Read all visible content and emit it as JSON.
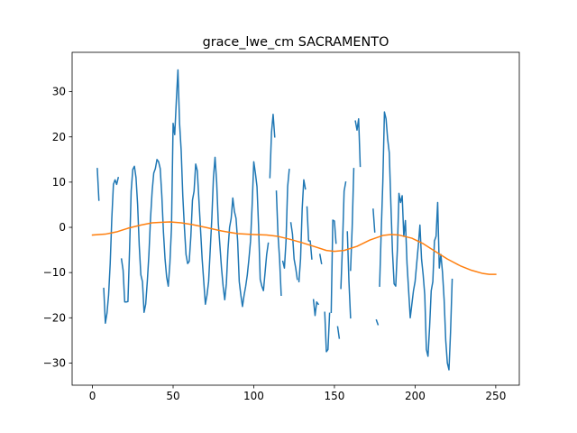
{
  "chart_data": {
    "type": "line",
    "title": "grace_lwe_cm SACRAMENTO",
    "xlabel": "",
    "ylabel": "",
    "xlim": [
      -12.6,
      264.6
    ],
    "ylim": [
      -34.9,
      38.7
    ],
    "xticks": [
      0,
      50,
      100,
      150,
      200,
      250
    ],
    "yticks": [
      -30,
      -20,
      -10,
      0,
      10,
      20,
      30
    ],
    "grid": false,
    "legend": "none",
    "series": [
      {
        "color": "#1f77b4",
        "segments": [
          [
            [
              3,
              13
            ],
            [
              4,
              6
            ]
          ],
          [
            [
              7,
              -13.5
            ],
            [
              8,
              -21.2
            ],
            [
              9,
              -19
            ],
            [
              10,
              -15
            ],
            [
              11,
              -8
            ],
            [
              12,
              2
            ],
            [
              13,
              9.5
            ],
            [
              14,
              10.5
            ],
            [
              15,
              9.5
            ],
            [
              16,
              11
            ]
          ],
          [
            [
              18,
              -7
            ],
            [
              19,
              -9.5
            ],
            [
              20,
              -16.5
            ],
            [
              21,
              -16.5
            ],
            [
              22,
              -16.4
            ],
            [
              23,
              -5
            ],
            [
              24,
              8
            ],
            [
              25,
              12.8
            ],
            [
              26,
              13.5
            ],
            [
              27,
              11
            ],
            [
              28,
              5
            ],
            [
              29,
              -4
            ],
            [
              30,
              -10.5
            ],
            [
              31,
              -12
            ],
            [
              32,
              -18.8
            ],
            [
              33,
              -17
            ],
            [
              34,
              -12
            ],
            [
              35,
              -6
            ],
            [
              36,
              2
            ],
            [
              37,
              8
            ],
            [
              38,
              12
            ],
            [
              39,
              13
            ],
            [
              40,
              15
            ],
            [
              41,
              14.5
            ],
            [
              42,
              13
            ],
            [
              43,
              7
            ],
            [
              44,
              -1
            ],
            [
              45,
              -7
            ],
            [
              46,
              -11
            ],
            [
              47,
              -13
            ],
            [
              48,
              -8
            ],
            [
              49,
              0
            ],
            [
              50,
              23
            ],
            [
              51,
              20.5
            ],
            [
              52,
              28
            ],
            [
              53,
              34.8
            ],
            [
              54,
              23
            ],
            [
              55,
              17
            ],
            [
              56,
              7
            ],
            [
              57,
              0
            ],
            [
              58,
              -6
            ],
            [
              59,
              -8
            ],
            [
              60,
              -7.5
            ],
            [
              61,
              -2
            ],
            [
              62,
              6
            ],
            [
              63,
              8
            ],
            [
              64,
              14
            ],
            [
              65,
              12.5
            ],
            [
              66,
              6
            ],
            [
              67,
              -0.5
            ],
            [
              68,
              -7
            ],
            [
              69,
              -12
            ],
            [
              70,
              -17
            ],
            [
              71,
              -15
            ],
            [
              72,
              -12
            ],
            [
              73,
              -5
            ],
            [
              74,
              2
            ],
            [
              75,
              11
            ],
            [
              76,
              15.5
            ],
            [
              77,
              10
            ],
            [
              78,
              1
            ],
            [
              79,
              -4
            ],
            [
              80,
              -9
            ],
            [
              81,
              -13
            ],
            [
              82,
              -16
            ],
            [
              83,
              -12.5
            ],
            [
              84,
              -5
            ],
            [
              85,
              0
            ],
            [
              86,
              2
            ],
            [
              87,
              6.5
            ],
            [
              88,
              3.5
            ],
            [
              89,
              2
            ],
            [
              90,
              -3
            ],
            [
              91,
              -12
            ],
            [
              92,
              -15
            ],
            [
              93,
              -17.5
            ],
            [
              94,
              -15
            ],
            [
              95,
              -13
            ],
            [
              96,
              -10.5
            ],
            [
              97,
              -7
            ],
            [
              98,
              -3
            ],
            [
              99,
              5
            ],
            [
              100,
              14.5
            ],
            [
              101,
              12
            ],
            [
              102,
              9
            ],
            [
              103,
              0
            ],
            [
              104,
              -11.5
            ],
            [
              105,
              -13
            ],
            [
              106,
              -14
            ],
            [
              107,
              -10
            ],
            [
              108,
              -6
            ],
            [
              109,
              -3.5
            ]
          ],
          [
            [
              110,
              11
            ],
            [
              111,
              21
            ],
            [
              112,
              25
            ],
            [
              113,
              20
            ]
          ],
          [
            [
              114,
              8
            ],
            [
              115,
              -1.5
            ],
            [
              116,
              -7
            ],
            [
              117,
              -15
            ]
          ],
          [
            [
              118,
              -7.5
            ],
            [
              119,
              -9
            ],
            [
              120,
              -3
            ],
            [
              121,
              9
            ],
            [
              122,
              12.8
            ]
          ],
          [
            [
              123,
              1
            ],
            [
              124,
              -1.5
            ],
            [
              125,
              -7
            ],
            [
              126,
              -9
            ],
            [
              127,
              -11.5
            ]
          ],
          [
            [
              128,
              -12
            ],
            [
              129,
              -7
            ],
            [
              130,
              4
            ],
            [
              131,
              10.5
            ],
            [
              132,
              8.5
            ]
          ],
          [
            [
              133,
              4.5
            ],
            [
              134,
              -3
            ],
            [
              135,
              -3
            ],
            [
              136,
              -7
            ]
          ],
          [
            [
              137,
              -16
            ],
            [
              138,
              -19.5
            ],
            [
              139,
              -16.5
            ],
            [
              140,
              -17
            ]
          ],
          [
            [
              141,
              -6
            ],
            [
              142,
              -8
            ]
          ],
          [
            [
              144,
              -18.8
            ],
            [
              145,
              -27.5
            ],
            [
              146,
              -27
            ],
            [
              147,
              -19
            ]
          ],
          [
            [
              148,
              -18.8
            ],
            [
              149,
              1.6
            ],
            [
              150,
              1.4
            ],
            [
              151,
              -3.5
            ]
          ],
          [
            [
              152,
              -22
            ],
            [
              153,
              -24.5
            ]
          ],
          [
            [
              154,
              -13.5
            ],
            [
              155,
              -4
            ],
            [
              156,
              8
            ],
            [
              157,
              10
            ]
          ],
          [
            [
              158,
              -1
            ],
            [
              159,
              -12
            ],
            [
              160,
              -20
            ]
          ],
          [
            [
              160,
              -9.5
            ],
            [
              161,
              0
            ],
            [
              162,
              13
            ]
          ],
          [
            [
              163,
              23.5
            ],
            [
              164,
              21.5
            ],
            [
              165,
              24
            ],
            [
              166,
              13.5
            ]
          ],
          [
            [
              174,
              4
            ],
            [
              175,
              -1
            ]
          ],
          [
            [
              176,
              -20.5
            ],
            [
              177,
              -21.5
            ]
          ],
          [
            [
              178,
              -13
            ],
            [
              179,
              -1
            ],
            [
              180,
              10
            ],
            [
              181,
              25.5
            ],
            [
              182,
              24
            ],
            [
              183,
              19.5
            ],
            [
              184,
              16.5
            ],
            [
              185,
              5
            ],
            [
              186,
              -5.5
            ],
            [
              187,
              -12.5
            ],
            [
              188,
              -13
            ],
            [
              189,
              -5
            ],
            [
              190,
              7.5
            ],
            [
              191,
              5.5
            ],
            [
              192,
              7
            ],
            [
              193,
              -2
            ],
            [
              194,
              1.5
            ],
            [
              195,
              -8
            ],
            [
              196,
              -14
            ],
            [
              197,
              -20
            ],
            [
              198,
              -17
            ],
            [
              199,
              -14
            ],
            [
              200,
              -12
            ],
            [
              201,
              -8
            ],
            [
              202,
              -4
            ],
            [
              203,
              0.5
            ],
            [
              204,
              -7
            ],
            [
              205,
              -10.5
            ],
            [
              206,
              -15
            ],
            [
              207,
              -27
            ],
            [
              208,
              -28.5
            ],
            [
              209,
              -22
            ],
            [
              210,
              -14
            ],
            [
              211,
              -12
            ],
            [
              212,
              -3
            ],
            [
              213,
              -2
            ],
            [
              214,
              5.5
            ],
            [
              215,
              -9
            ],
            [
              216,
              -6
            ],
            [
              217,
              -10
            ],
            [
              218,
              -16
            ],
            [
              219,
              -25
            ],
            [
              220,
              -30
            ],
            [
              221,
              -31.5
            ],
            [
              222,
              -23
            ],
            [
              223,
              -11.5
            ]
          ]
        ]
      },
      {
        "color": "#ff7f0e",
        "points": [
          [
            0,
            -1.7
          ],
          [
            8,
            -1.5
          ],
          [
            15,
            -1.0
          ],
          [
            22,
            -0.2
          ],
          [
            30,
            0.5
          ],
          [
            37,
            1.0
          ],
          [
            42,
            1.1
          ],
          [
            48,
            1.2
          ],
          [
            55,
            1.0
          ],
          [
            62,
            0.6
          ],
          [
            70,
            0.0
          ],
          [
            80,
            -0.8
          ],
          [
            90,
            -1.4
          ],
          [
            100,
            -1.6
          ],
          [
            108,
            -1.7
          ],
          [
            115,
            -2.0
          ],
          [
            122,
            -2.6
          ],
          [
            130,
            -3.4
          ],
          [
            138,
            -4.3
          ],
          [
            145,
            -5.1
          ],
          [
            150,
            -5.3
          ],
          [
            156,
            -5.1
          ],
          [
            164,
            -4.2
          ],
          [
            172,
            -2.8
          ],
          [
            180,
            -1.8
          ],
          [
            185,
            -1.6
          ],
          [
            190,
            -1.7
          ],
          [
            198,
            -2.4
          ],
          [
            205,
            -3.6
          ],
          [
            212,
            -5.2
          ],
          [
            220,
            -7.0
          ],
          [
            228,
            -8.5
          ],
          [
            235,
            -9.5
          ],
          [
            242,
            -10.2
          ],
          [
            246,
            -10.4
          ],
          [
            250,
            -10.4
          ]
        ]
      }
    ]
  }
}
